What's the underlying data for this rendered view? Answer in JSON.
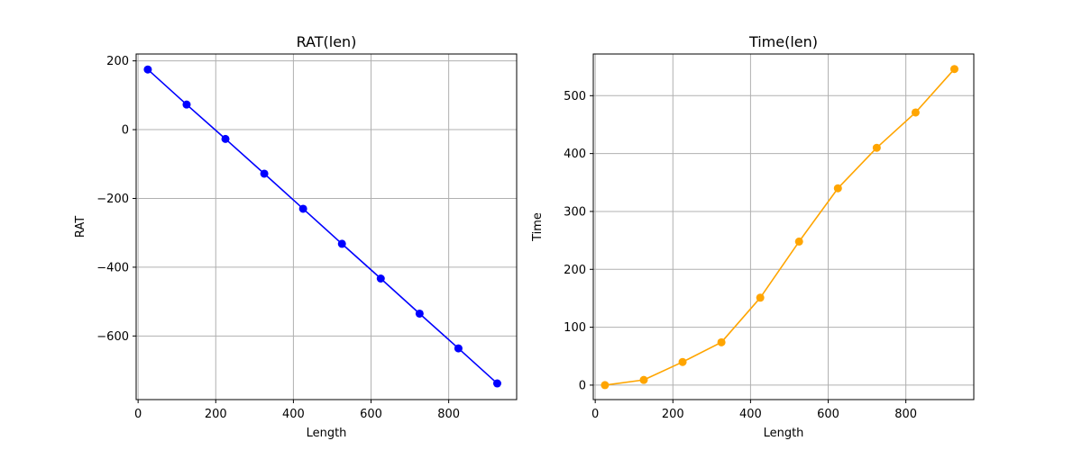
{
  "chart_data": [
    {
      "type": "line",
      "title": "RAT(len)",
      "xlabel": "Length",
      "ylabel": "RAT",
      "xlim": [
        -5,
        975
      ],
      "ylim": [
        -785,
        220
      ],
      "xticks": [
        0,
        200,
        400,
        600,
        800
      ],
      "yticks": [
        200,
        0,
        -200,
        -400,
        -600
      ],
      "grid": true,
      "marker": "circle",
      "color": "#0000ff",
      "x": [
        25,
        125,
        225,
        325,
        425,
        525,
        625,
        725,
        825,
        925
      ],
      "series": [
        {
          "values": [
            175,
            73,
            -27,
            -128,
            -230,
            -332,
            -433,
            -535,
            -636,
            -738
          ]
        }
      ]
    },
    {
      "type": "line",
      "title": "Time(len)",
      "xlabel": "Length",
      "ylabel": "Time",
      "xlim": [
        -5,
        975
      ],
      "ylim": [
        -25,
        572
      ],
      "xticks": [
        0,
        200,
        400,
        600,
        800
      ],
      "yticks": [
        0,
        100,
        200,
        300,
        400,
        500
      ],
      "grid": true,
      "marker": "circle",
      "color": "#ffa500",
      "x": [
        25,
        125,
        225,
        325,
        425,
        525,
        625,
        725,
        825,
        925
      ],
      "series": [
        {
          "values": [
            0,
            9,
            40,
            74,
            151,
            248,
            340,
            410,
            471,
            546
          ]
        }
      ]
    }
  ]
}
